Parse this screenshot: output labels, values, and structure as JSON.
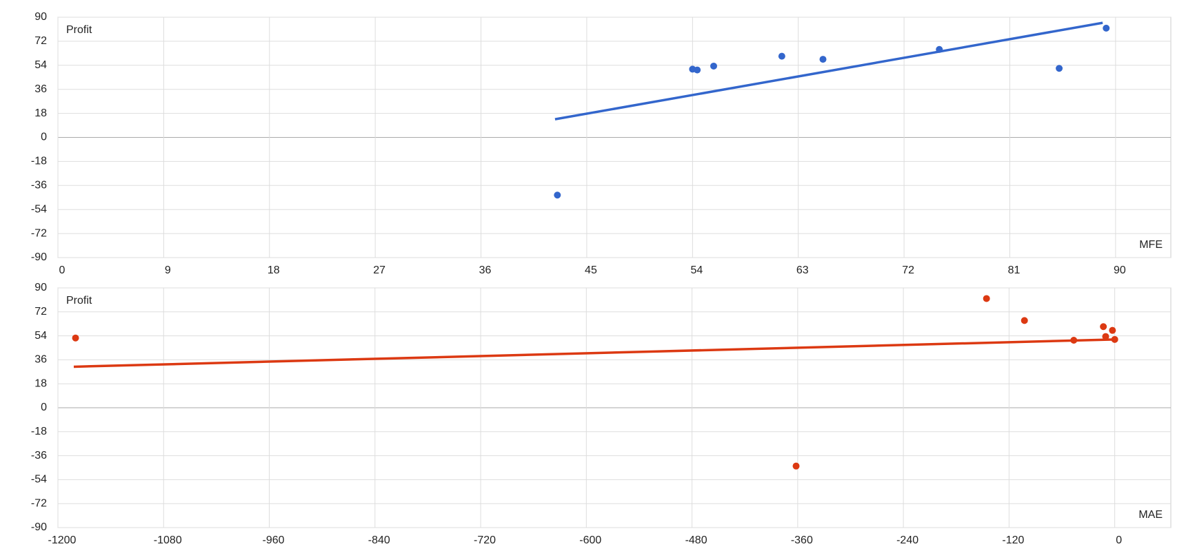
{
  "chart_data": [
    {
      "type": "scatter",
      "x_label": "MFE",
      "y_label": "Profit",
      "color": "#3366cc",
      "x": [
        42.5,
        54.0,
        54.4,
        55.8,
        61.6,
        65.1,
        75.0,
        85.2,
        89.2
      ],
      "values": [
        -43.2,
        51.1,
        50.5,
        53.4,
        60.8,
        58.5,
        65.9,
        51.7,
        81.8
      ],
      "trendline": {
        "x": [
          42.3,
          88.9
        ],
        "values": [
          13.6,
          85.8
        ]
      },
      "xlim": [
        0,
        94.7
      ],
      "xticks": [
        0,
        9,
        18,
        27,
        36,
        45,
        54,
        63,
        72,
        81,
        90
      ],
      "ylim": [
        -90,
        90
      ],
      "yticks": [
        -90,
        -72,
        -54,
        -36,
        -18,
        0,
        18,
        36,
        54,
        72,
        90
      ],
      "grid": true
    },
    {
      "type": "scatter",
      "x_label": "MAE",
      "y_label": "Profit",
      "color": "#dc3912",
      "x": [
        -1180,
        -361.8,
        -145.6,
        -102.5,
        -46.5,
        -12.9,
        -2.6,
        -10.3,
        0
      ],
      "values": [
        52.4,
        -43.8,
        82.0,
        65.5,
        50.7,
        60.9,
        58.1,
        53.5,
        51.3
      ],
      "trendline": {
        "x": [
          -1182,
          0
        ],
        "values": [
          30.8,
          51.3
        ]
      },
      "xlim": [
        -1200,
        63.7
      ],
      "xticks": [
        -1200,
        -1080,
        -960,
        -840,
        -720,
        -600,
        -480,
        -360,
        -240,
        -120,
        0
      ],
      "ylim": [
        -90,
        90
      ],
      "yticks": [
        -90,
        -72,
        -54,
        -36,
        -18,
        0,
        18,
        36,
        54,
        72,
        90
      ],
      "grid": true
    }
  ]
}
